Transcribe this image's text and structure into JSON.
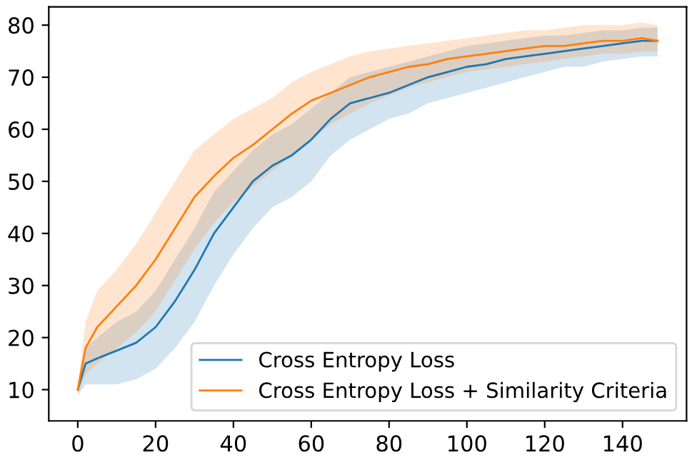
{
  "chart_data": {
    "type": "line",
    "x": [
      0,
      2,
      5,
      10,
      15,
      20,
      25,
      30,
      35,
      40,
      45,
      50,
      55,
      60,
      65,
      70,
      75,
      80,
      85,
      90,
      95,
      100,
      105,
      110,
      115,
      120,
      125,
      130,
      135,
      140,
      145,
      149
    ],
    "series": [
      {
        "name": "Cross Entropy Loss",
        "color": "#1f77b4",
        "values": [
          10,
          15,
          16,
          17.5,
          19,
          22,
          27,
          33,
          40,
          45,
          50,
          53,
          55,
          58,
          62,
          65,
          66,
          67,
          68.5,
          70,
          71,
          72,
          72.5,
          73.5,
          74,
          74.5,
          75,
          75.5,
          76,
          76.5,
          77,
          77
        ],
        "lower": [
          9,
          11,
          11,
          11,
          12,
          14,
          18,
          23,
          30,
          36,
          41,
          45,
          47,
          50,
          55,
          58,
          60,
          62,
          63,
          65,
          66,
          67,
          68,
          69,
          70,
          71,
          72,
          72,
          73,
          73.5,
          74,
          74
        ],
        "upper": [
          11,
          18,
          20,
          23,
          25,
          29,
          35,
          41,
          48,
          52,
          56,
          59,
          61,
          64,
          67,
          70,
          71,
          72,
          73,
          74,
          75,
          76,
          76.5,
          77,
          77.5,
          78,
          78,
          78.5,
          79,
          79,
          79.5,
          79.5
        ]
      },
      {
        "name": "Cross Entropy Loss + Similarity Criteria",
        "color": "#ff7f0e",
        "values": [
          10,
          18,
          22,
          26,
          30,
          35,
          41,
          47,
          51,
          54.5,
          57,
          60,
          63,
          65.5,
          67,
          68.5,
          70,
          71,
          72,
          72.5,
          73.5,
          74,
          74.5,
          75,
          75.5,
          76,
          76,
          76.5,
          77,
          77,
          77.5,
          77
        ],
        "lower": [
          9,
          13,
          15,
          18,
          21,
          25,
          31,
          37,
          42,
          46,
          49,
          52,
          55,
          58,
          61,
          63,
          65,
          66.5,
          68,
          69,
          70,
          71,
          71.5,
          72,
          72.5,
          73,
          73.5,
          74,
          74.5,
          74.5,
          75,
          75
        ],
        "upper": [
          11,
          23,
          29,
          33,
          38,
          44,
          50,
          56,
          59,
          62,
          64,
          66,
          69,
          71,
          72.5,
          74,
          75,
          75.5,
          76,
          76.5,
          77,
          77.5,
          78,
          78.5,
          79,
          79,
          79.5,
          80,
          80,
          80,
          80.5,
          80
        ]
      }
    ],
    "xlim": [
      -7.45,
      156.45
    ],
    "ylim": [
      4,
      83.5
    ],
    "xticks": [
      0,
      20,
      40,
      60,
      80,
      100,
      120,
      140
    ],
    "yticks": [
      10,
      20,
      30,
      40,
      50,
      60,
      70,
      80
    ],
    "grid": false,
    "legend": "bottom right"
  }
}
